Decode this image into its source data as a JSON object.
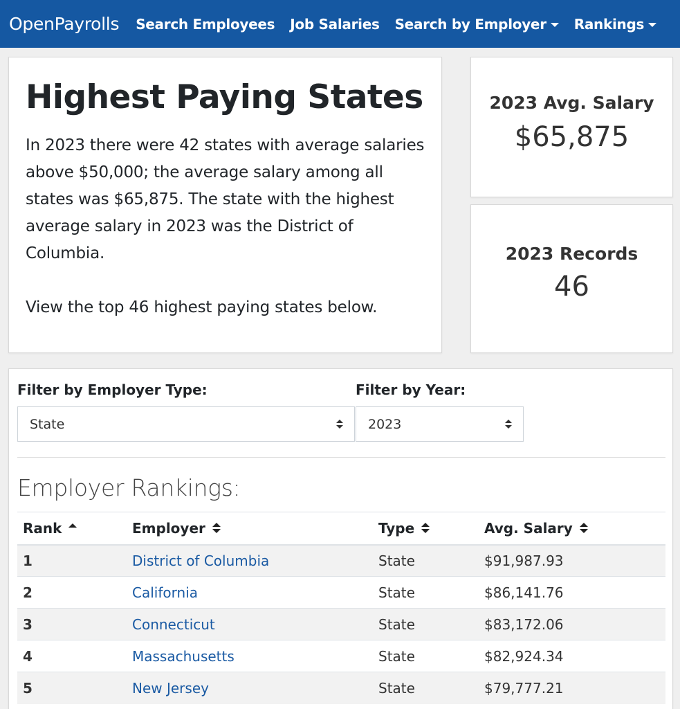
{
  "nav": {
    "brand": "OpenPayrolls",
    "items": [
      {
        "label": "Search Employees"
      },
      {
        "label": "Job Salaries"
      },
      {
        "label": "Search by Employer"
      },
      {
        "label": "Rankings"
      }
    ]
  },
  "intro": {
    "title": "Highest Paying States",
    "paragraph1": "In 2023 there were 42 states with average salaries above $50,000; the average salary among all states was $65,875. The state with the highest average salary in 2023 was the District of Columbia.",
    "paragraph2": "View the top 46 highest paying states below."
  },
  "stats": {
    "avg_salary": {
      "label": "2023 Avg. Salary",
      "value": "$65,875"
    },
    "records": {
      "label": "2023 Records",
      "value": "46"
    }
  },
  "filters": {
    "employer_type": {
      "label": "Filter by Employer Type:",
      "value": "State"
    },
    "year": {
      "label": "Filter by Year:",
      "value": "2023"
    }
  },
  "rankings": {
    "title": "Employer Rankings:",
    "columns": [
      "Rank",
      "Employer",
      "Type",
      "Avg. Salary"
    ],
    "rows": [
      {
        "rank": "1",
        "employer": "District of Columbia",
        "type": "State",
        "salary": "$91,987.93"
      },
      {
        "rank": "2",
        "employer": "California",
        "type": "State",
        "salary": "$86,141.76"
      },
      {
        "rank": "3",
        "employer": "Connecticut",
        "type": "State",
        "salary": "$83,172.06"
      },
      {
        "rank": "4",
        "employer": "Massachusetts",
        "type": "State",
        "salary": "$82,924.34"
      },
      {
        "rank": "5",
        "employer": "New Jersey",
        "type": "State",
        "salary": "$79,777.21"
      }
    ]
  }
}
